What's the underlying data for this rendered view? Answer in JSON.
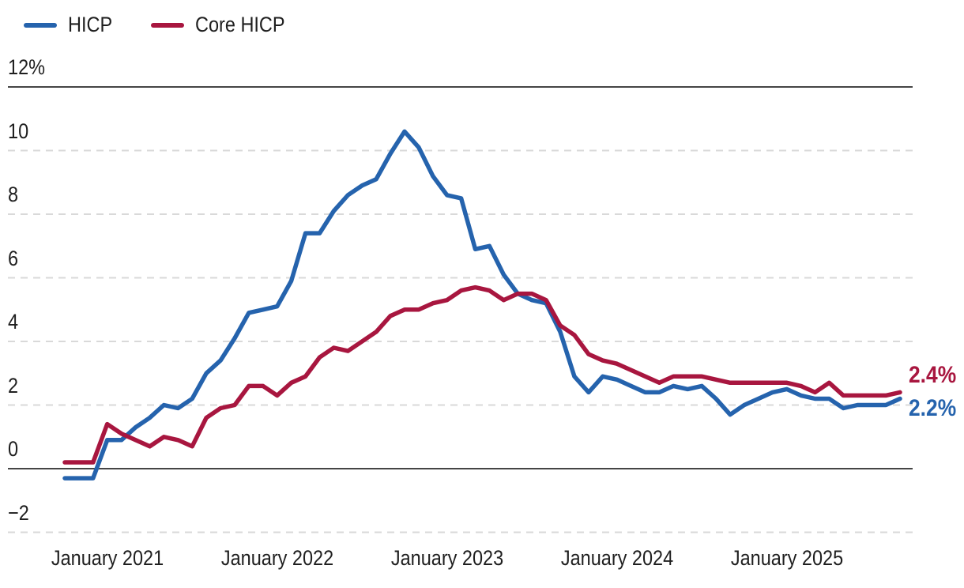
{
  "legend": {
    "items": [
      {
        "label": "HICP",
        "color": "#2563ad"
      },
      {
        "label": "Core HICP",
        "color": "#a8163f"
      }
    ]
  },
  "chart_data": {
    "type": "line",
    "title": "",
    "x_unit": "month",
    "x": [
      "2020-10",
      "2020-11",
      "2020-12",
      "2021-01",
      "2021-02",
      "2021-03",
      "2021-04",
      "2021-05",
      "2021-06",
      "2021-07",
      "2021-08",
      "2021-09",
      "2021-10",
      "2021-11",
      "2021-12",
      "2022-01",
      "2022-02",
      "2022-03",
      "2022-04",
      "2022-05",
      "2022-06",
      "2022-07",
      "2022-08",
      "2022-09",
      "2022-10",
      "2022-11",
      "2022-12",
      "2023-01",
      "2023-02",
      "2023-03",
      "2023-04",
      "2023-05",
      "2023-06",
      "2023-07",
      "2023-08",
      "2023-09",
      "2023-10",
      "2023-11",
      "2023-12",
      "2024-01",
      "2024-02",
      "2024-03",
      "2024-04",
      "2024-05",
      "2024-06",
      "2024-07",
      "2024-08",
      "2024-09",
      "2024-10",
      "2024-11",
      "2024-12",
      "2025-01",
      "2025-02",
      "2025-03",
      "2025-04",
      "2025-05",
      "2025-06",
      "2025-07",
      "2025-08",
      "2025-09"
    ],
    "series": [
      {
        "name": "HICP",
        "color": "#2563ad",
        "end_label": "2.2%",
        "values": [
          -0.3,
          -0.3,
          -0.3,
          0.9,
          0.9,
          1.3,
          1.6,
          2.0,
          1.9,
          2.2,
          3.0,
          3.4,
          4.1,
          4.9,
          5.0,
          5.1,
          5.9,
          7.4,
          7.4,
          8.1,
          8.6,
          8.9,
          9.1,
          9.9,
          10.6,
          10.1,
          9.2,
          8.6,
          8.5,
          6.9,
          7.0,
          6.1,
          5.5,
          5.3,
          5.2,
          4.3,
          2.9,
          2.4,
          2.9,
          2.8,
          2.6,
          2.4,
          2.4,
          2.6,
          2.5,
          2.6,
          2.2,
          1.7,
          2.0,
          2.2,
          2.4,
          2.5,
          2.3,
          2.2,
          2.2,
          1.9,
          2.0,
          2.0,
          2.0,
          2.2
        ]
      },
      {
        "name": "Core HICP",
        "color": "#a8163f",
        "end_label": "2.4%",
        "values": [
          0.2,
          0.2,
          0.2,
          1.4,
          1.1,
          0.9,
          0.7,
          1.0,
          0.9,
          0.7,
          1.6,
          1.9,
          2.0,
          2.6,
          2.6,
          2.3,
          2.7,
          2.9,
          3.5,
          3.8,
          3.7,
          4.0,
          4.3,
          4.8,
          5.0,
          5.0,
          5.2,
          5.3,
          5.6,
          5.7,
          5.6,
          5.3,
          5.5,
          5.5,
          5.3,
          4.5,
          4.2,
          3.6,
          3.4,
          3.3,
          3.1,
          2.9,
          2.7,
          2.9,
          2.9,
          2.9,
          2.8,
          2.7,
          2.7,
          2.7,
          2.7,
          2.7,
          2.6,
          2.4,
          2.7,
          2.3,
          2.3,
          2.3,
          2.3,
          2.4
        ]
      }
    ],
    "ylim": [
      -2.8,
      12.3
    ],
    "yticks": [
      {
        "value": 12,
        "label": "12%",
        "style": "solid"
      },
      {
        "value": 10,
        "label": "10",
        "style": "dashed"
      },
      {
        "value": 8,
        "label": "8",
        "style": "dashed"
      },
      {
        "value": 6,
        "label": "6",
        "style": "dashed"
      },
      {
        "value": 4,
        "label": "4",
        "style": "dashed"
      },
      {
        "value": 2,
        "label": "2",
        "style": "dashed"
      },
      {
        "value": 0,
        "label": "0",
        "style": "solid"
      },
      {
        "value": -2,
        "label": "−2",
        "style": "dashed"
      }
    ],
    "xticks": [
      {
        "x": "2021-01",
        "label": "January 2021"
      },
      {
        "x": "2022-01",
        "label": "January 2022"
      },
      {
        "x": "2023-01",
        "label": "January 2023"
      },
      {
        "x": "2024-01",
        "label": "January 2024"
      },
      {
        "x": "2025-01",
        "label": "January 2025"
      }
    ],
    "grid": "horizontal-dashed",
    "legend_position": "top-left",
    "background": "#ffffff"
  }
}
